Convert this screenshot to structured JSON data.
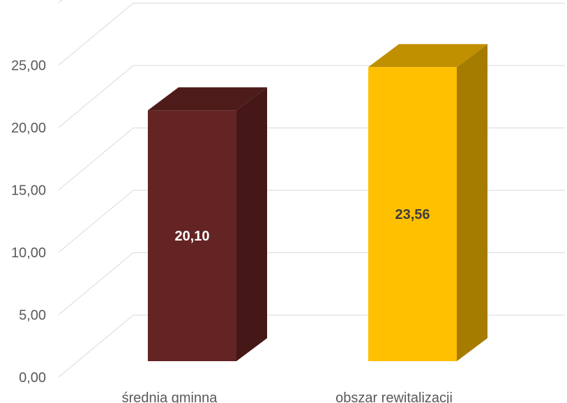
{
  "chart_data": {
    "type": "bar",
    "categories": [
      "średnia gminna",
      "obszar rewitalizacji"
    ],
    "values": [
      20.1,
      23.56
    ],
    "value_labels": [
      "20,10",
      "23,56"
    ],
    "y_ticks": [
      "0,00",
      "5,00",
      "10,00",
      "15,00",
      "20,00",
      "25,00"
    ],
    "ylim": [
      0,
      30
    ],
    "grid": true,
    "three_d": true,
    "title": "",
    "xlabel": "",
    "ylabel": "",
    "colors": {
      "bar_1": {
        "front": "#632423",
        "top": "#4d1b1a",
        "side": "#451716",
        "label": "#ffffff"
      },
      "bar_2": {
        "front": "#ffc000",
        "top": "#c09000",
        "side": "#a67c00",
        "label": "#3d3d3d"
      },
      "grid": "#d9d9d9",
      "tick_text": "#595959"
    }
  }
}
